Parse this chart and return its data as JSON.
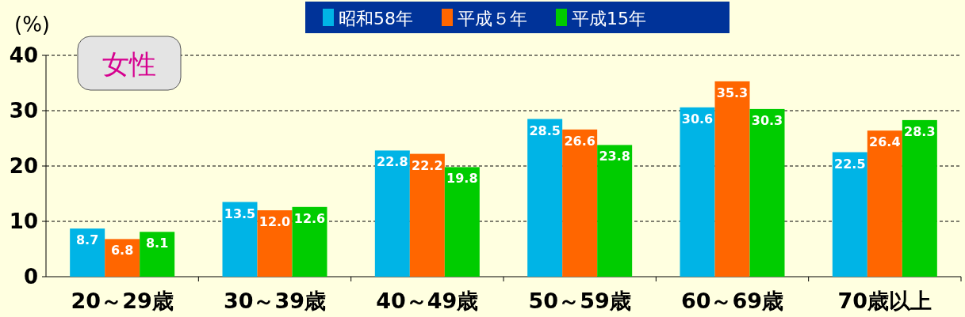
{
  "chart_data": {
    "type": "bar",
    "ylabel": "(%)",
    "annotations": [
      "女性"
    ],
    "categories": [
      "20～29歳",
      "30～39歳",
      "40～49歳",
      "50～59歳",
      "60～69歳",
      "70歳以上"
    ],
    "series": [
      {
        "name": "昭和58年",
        "color": "#00b4e6",
        "values": [
          8.7,
          13.5,
          22.8,
          28.5,
          30.6,
          22.5
        ],
        "value_labels": [
          "8.7",
          "13.5",
          "22.8",
          "28.5",
          "30.6",
          "22.5"
        ]
      },
      {
        "name": "平成５年",
        "color": "#ff6600",
        "values": [
          6.8,
          12.0,
          22.2,
          26.6,
          35.3,
          26.4
        ],
        "value_labels": [
          "6.8",
          "12.0",
          "22.2",
          "26.6",
          "35.3",
          "26.4"
        ]
      },
      {
        "name": "平成15年",
        "color": "#00cc00",
        "values": [
          8.1,
          12.6,
          19.8,
          23.8,
          30.3,
          28.3
        ],
        "value_labels": [
          "8.1",
          "12.6",
          "19.8",
          "23.8",
          "30.3",
          "28.3"
        ]
      }
    ],
    "ylim": [
      0,
      40
    ],
    "yticks": [
      0,
      10,
      20,
      30,
      40
    ],
    "grid": "y",
    "legend": "top"
  }
}
